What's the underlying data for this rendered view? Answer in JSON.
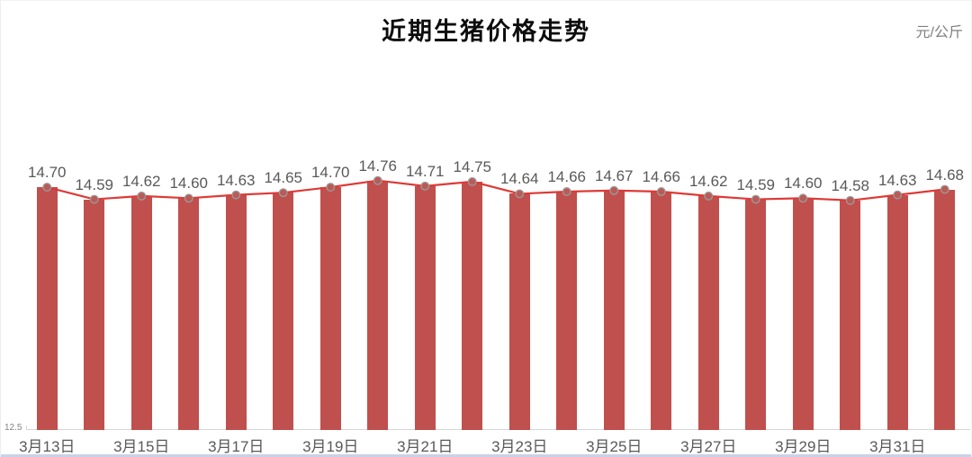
{
  "header": {
    "title": "近期生猪价格走势",
    "unit_label": "元/公斤"
  },
  "y_axis": {
    "min_label": "12.5"
  },
  "colors": {
    "title": "#0d0d0d",
    "unit_label": "#808080",
    "ymin_label": "#848484",
    "axis_line": "#d6d6d6",
    "bar": "#c0504d",
    "line": "#dd3a37",
    "marker_fill": "#b95b57",
    "marker_stroke": "#9b9b9b",
    "value_label": "#595959",
    "x_tick_label": "#595959",
    "bottom_border": "#c9d2ea"
  },
  "chart_data": {
    "type": "bar",
    "subtype": "bar-with-line-overlay",
    "title": "近期生猪价格走势",
    "ylabel": "元/公斤",
    "ymin": 12.5,
    "grid": "off",
    "legend": "none",
    "x_tick_labels": [
      "3月13日",
      "3月15日",
      "3月17日",
      "3月19日",
      "3月21日",
      "3月23日",
      "3月25日",
      "3月27日",
      "3月29日",
      "3月31日"
    ],
    "x_tick_every": 2,
    "values": [
      14.7,
      14.59,
      14.62,
      14.6,
      14.63,
      14.65,
      14.7,
      14.76,
      14.71,
      14.75,
      14.64,
      14.66,
      14.67,
      14.66,
      14.62,
      14.59,
      14.6,
      14.58,
      14.63,
      14.68
    ],
    "value_label_decimals": 2
  }
}
